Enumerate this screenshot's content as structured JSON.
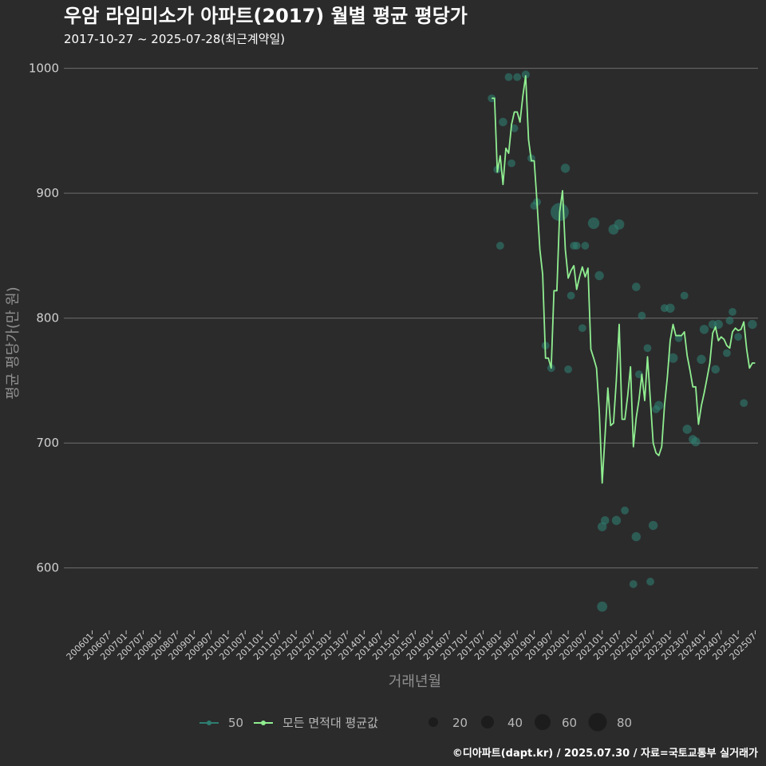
{
  "chart_data": {
    "type": "line",
    "title": "우암 라임미소가 아파트(2017) 월별 평균 평당가",
    "subtitle": "2017-10-27 ~ 2025-07-28(최근계약일)",
    "xlabel": "거래년월",
    "ylabel": "평균 평당가(만 원)",
    "caption": "©디아파트(dapt.kr) / 2025.07.30 / 자료=국토교통부 실거래가",
    "ylim": [
      550,
      1010
    ],
    "yticks": [
      600,
      700,
      800,
      900,
      1000
    ],
    "xlim": [
      "2006-01",
      "2025-07"
    ],
    "xticks": [
      "200601",
      "200607",
      "200701",
      "200707",
      "200801",
      "200807",
      "200901",
      "200907",
      "201001",
      "201007",
      "201101",
      "201107",
      "201201",
      "201207",
      "201301",
      "201307",
      "201401",
      "201407",
      "201501",
      "201507",
      "201601",
      "201607",
      "201701",
      "201707",
      "201801",
      "201807",
      "201901",
      "201907",
      "202001",
      "202007",
      "202101",
      "202107",
      "202201",
      "202207",
      "202301",
      "202307",
      "202401",
      "202407",
      "202501",
      "202507"
    ],
    "series": [
      {
        "name": "모든 면적대 평균값",
        "color": "#90ee90",
        "points": [
          [
            "2017-10",
            976
          ],
          [
            "2017-11",
            976
          ],
          [
            "2017-12",
            917
          ],
          [
            "2018-01",
            930
          ],
          [
            "2018-02",
            907
          ],
          [
            "2018-03",
            936
          ],
          [
            "2018-04",
            932
          ],
          [
            "2018-05",
            955
          ],
          [
            "2018-06",
            965
          ],
          [
            "2018-07",
            965
          ],
          [
            "2018-08",
            957
          ],
          [
            "2018-09",
            978
          ],
          [
            "2018-10",
            994
          ],
          [
            "2018-11",
            943
          ],
          [
            "2018-12",
            926
          ],
          [
            "2019-01",
            926
          ],
          [
            "2019-02",
            893
          ],
          [
            "2019-03",
            855
          ],
          [
            "2019-04",
            835
          ],
          [
            "2019-05",
            768
          ],
          [
            "2019-06",
            768
          ],
          [
            "2019-07",
            760
          ],
          [
            "2019-08",
            822
          ],
          [
            "2019-09",
            822
          ],
          [
            "2019-10",
            885
          ],
          [
            "2019-11",
            902
          ],
          [
            "2019-12",
            855
          ],
          [
            "2020-01",
            832
          ],
          [
            "2020-02",
            838
          ],
          [
            "2020-03",
            842
          ],
          [
            "2020-04",
            823
          ],
          [
            "2020-05",
            833
          ],
          [
            "2020-06",
            841
          ],
          [
            "2020-07",
            833
          ],
          [
            "2020-08",
            840
          ],
          [
            "2020-09",
            775
          ],
          [
            "2020-10",
            768
          ],
          [
            "2020-11",
            760
          ],
          [
            "2020-12",
            725
          ],
          [
            "2021-01",
            668
          ],
          [
            "2021-02",
            705
          ],
          [
            "2021-03",
            744
          ],
          [
            "2021-04",
            714
          ],
          [
            "2021-05",
            716
          ],
          [
            "2021-06",
            750
          ],
          [
            "2021-07",
            795
          ],
          [
            "2021-08",
            719
          ],
          [
            "2021-09",
            719
          ],
          [
            "2021-10",
            738
          ],
          [
            "2021-11",
            761
          ],
          [
            "2021-12",
            697
          ],
          [
            "2022-01",
            720
          ],
          [
            "2022-02",
            735
          ],
          [
            "2022-03",
            755
          ],
          [
            "2022-04",
            734
          ],
          [
            "2022-05",
            769
          ],
          [
            "2022-06",
            734
          ],
          [
            "2022-07",
            700
          ],
          [
            "2022-08",
            692
          ],
          [
            "2022-09",
            690
          ],
          [
            "2022-10",
            697
          ],
          [
            "2022-11",
            730
          ],
          [
            "2022-12",
            753
          ],
          [
            "2023-01",
            782
          ],
          [
            "2023-02",
            795
          ],
          [
            "2023-03",
            786
          ],
          [
            "2023-04",
            786
          ],
          [
            "2023-05",
            786
          ],
          [
            "2023-06",
            789
          ],
          [
            "2023-07",
            770
          ],
          [
            "2023-08",
            758
          ],
          [
            "2023-09",
            745
          ],
          [
            "2023-10",
            745
          ],
          [
            "2023-11",
            715
          ],
          [
            "2023-12",
            730
          ],
          [
            "2024-01",
            740
          ],
          [
            "2024-02",
            752
          ],
          [
            "2024-03",
            764
          ],
          [
            "2024-04",
            788
          ],
          [
            "2024-05",
            793
          ],
          [
            "2024-06",
            782
          ],
          [
            "2024-07",
            785
          ],
          [
            "2024-08",
            783
          ],
          [
            "2024-09",
            778
          ],
          [
            "2024-10",
            776
          ],
          [
            "2024-11",
            789
          ],
          [
            "2024-12",
            792
          ],
          [
            "2025-01",
            790
          ],
          [
            "2025-02",
            791
          ],
          [
            "2025-03",
            797
          ],
          [
            "2025-04",
            775
          ],
          [
            "2025-05",
            760
          ],
          [
            "2025-06",
            764
          ],
          [
            "2025-07",
            764
          ]
        ]
      }
    ],
    "scatter": {
      "name": "50",
      "color": "#2e7d70",
      "points": [
        [
          "2017-10",
          976,
          6
        ],
        [
          "2017-12",
          919,
          6
        ],
        [
          "2018-01",
          858,
          6
        ],
        [
          "2018-02",
          957,
          8
        ],
        [
          "2018-04",
          993,
          6
        ],
        [
          "2018-05",
          924,
          6
        ],
        [
          "2018-06",
          952,
          6
        ],
        [
          "2018-07",
          993,
          6
        ],
        [
          "2018-10",
          995,
          7
        ],
        [
          "2018-12",
          928,
          6
        ],
        [
          "2019-01",
          890,
          6
        ],
        [
          "2019-02",
          893,
          6
        ],
        [
          "2019-05",
          778,
          6
        ],
        [
          "2019-07",
          760,
          6
        ],
        [
          "2019-10",
          885,
          80
        ],
        [
          "2019-12",
          920,
          10
        ],
        [
          "2020-01",
          759,
          6
        ],
        [
          "2020-02",
          818,
          6
        ],
        [
          "2020-03",
          858,
          6
        ],
        [
          "2020-04",
          858,
          6
        ],
        [
          "2020-06",
          792,
          6
        ],
        [
          "2020-07",
          858,
          6
        ],
        [
          "2020-10",
          876,
          22
        ],
        [
          "2020-12",
          834,
          10
        ],
        [
          "2021-01",
          569,
          15
        ],
        [
          "2021-01",
          633,
          10
        ],
        [
          "2021-02",
          638,
          8
        ],
        [
          "2021-05",
          871,
          15
        ],
        [
          "2021-06",
          638,
          10
        ],
        [
          "2021-07",
          875,
          15
        ],
        [
          "2021-09",
          646,
          6
        ],
        [
          "2021-12",
          587,
          6
        ],
        [
          "2022-01",
          825,
          8
        ],
        [
          "2022-01",
          625,
          10
        ],
        [
          "2022-02",
          755,
          6
        ],
        [
          "2022-03",
          802,
          6
        ],
        [
          "2022-05",
          776,
          6
        ],
        [
          "2022-06",
          589,
          6
        ],
        [
          "2022-07",
          634,
          10
        ],
        [
          "2022-08",
          727,
          6
        ],
        [
          "2022-09",
          730,
          10
        ],
        [
          "2022-11",
          808,
          6
        ],
        [
          "2023-01",
          808,
          10
        ],
        [
          "2023-02",
          768,
          12
        ],
        [
          "2023-04",
          784,
          6
        ],
        [
          "2023-06",
          818,
          6
        ],
        [
          "2023-07",
          711,
          10
        ],
        [
          "2023-09",
          703,
          8
        ],
        [
          "2023-10",
          701,
          10
        ],
        [
          "2023-12",
          767,
          10
        ],
        [
          "2024-01",
          791,
          10
        ],
        [
          "2024-04",
          795,
          8
        ],
        [
          "2024-05",
          759,
          8
        ],
        [
          "2024-06",
          795,
          10
        ],
        [
          "2024-09",
          772,
          6
        ],
        [
          "2024-10",
          798,
          6
        ],
        [
          "2024-11",
          805,
          6
        ],
        [
          "2025-01",
          785,
          6
        ],
        [
          "2025-03",
          732,
          6
        ],
        [
          "2025-06",
          795,
          10
        ]
      ]
    },
    "legend": {
      "series_label": "50",
      "mean_label": "모든 면적대 평균값",
      "sizes": [
        {
          "label": "20",
          "value": 20
        },
        {
          "label": "40",
          "value": 40
        },
        {
          "label": "60",
          "value": 60
        },
        {
          "label": "80",
          "value": 80
        }
      ]
    }
  }
}
